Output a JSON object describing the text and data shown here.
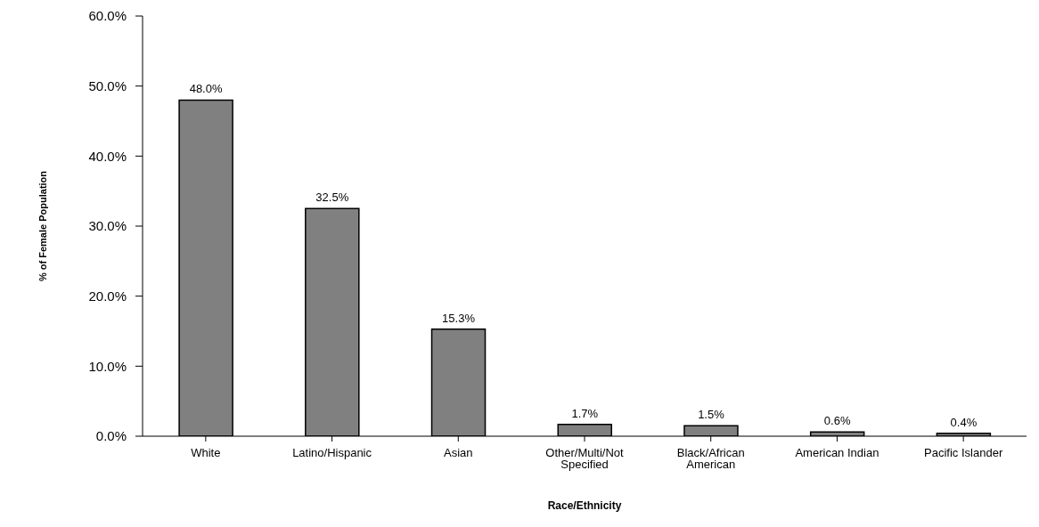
{
  "chart_data": {
    "type": "bar",
    "xlabel": "Race/Ethnicity",
    "ylabel": "% of Female Population",
    "categories": [
      "White",
      "Latino/Hispanic",
      "Asian",
      "Other/Multi/Not Specified",
      "Black/African American",
      "American Indian",
      "Pacific Islander"
    ],
    "values": [
      48.0,
      32.5,
      15.3,
      1.7,
      1.5,
      0.6,
      0.4
    ],
    "value_labels": [
      "48.0%",
      "32.5%",
      "15.3%",
      "1.7%",
      "1.5%",
      "0.6%",
      "0.4%"
    ],
    "color": "#808080",
    "ylim": [
      0,
      60
    ],
    "yticks": [
      {
        "value": 0,
        "label": "0.0%"
      },
      {
        "value": 10,
        "label": "10.0%"
      },
      {
        "value": 20,
        "label": "20.0%"
      },
      {
        "value": 30,
        "label": "30.0%"
      },
      {
        "value": 40,
        "label": "40.0%"
      },
      {
        "value": 50,
        "label": "50.0%"
      },
      {
        "value": 60,
        "label": "60.0%"
      }
    ],
    "grid": false,
    "legend": false
  }
}
